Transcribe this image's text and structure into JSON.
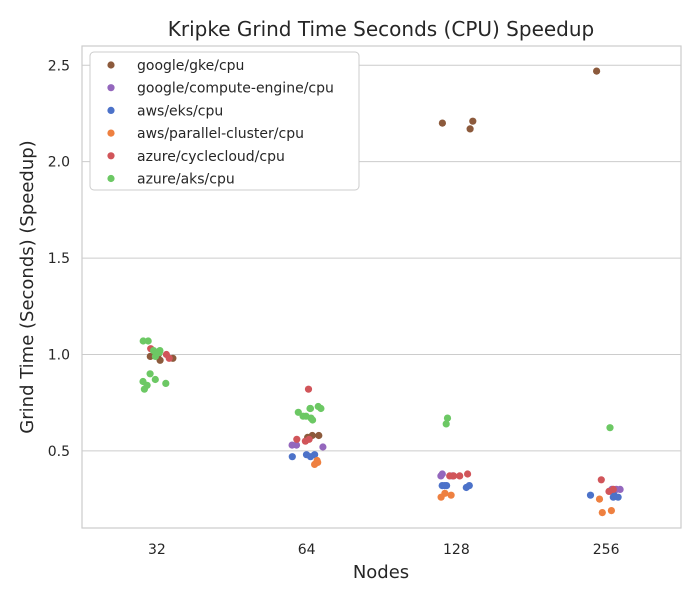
{
  "chart_data": {
    "type": "scatter",
    "title": "Kripke Grind Time Seconds (CPU) Speedup",
    "xlabel": "Nodes",
    "ylabel": "Grind Time (Seconds) (Speedup)",
    "categories": [
      "32",
      "64",
      "128",
      "256"
    ],
    "yticks": [
      "0.5",
      "1.0",
      "1.5",
      "2.0",
      "2.5"
    ],
    "ylim": [
      0.1,
      2.6
    ],
    "grid": true,
    "legend_position": "top-left",
    "series": [
      {
        "name": "google/gke/cpu",
        "color": "#8c5a3c",
        "points": [
          {
            "x": "32",
            "y": 0.97
          },
          {
            "x": "32",
            "y": 0.99
          },
          {
            "x": "32",
            "y": 1.0
          },
          {
            "x": "32",
            "y": 0.98
          },
          {
            "x": "64",
            "y": 0.58
          },
          {
            "x": "64",
            "y": 0.57
          },
          {
            "x": "64",
            "y": 0.58
          },
          {
            "x": "128",
            "y": 2.17
          },
          {
            "x": "128",
            "y": 2.2
          },
          {
            "x": "128",
            "y": 2.21
          },
          {
            "x": "256",
            "y": 2.47
          }
        ]
      },
      {
        "name": "google/compute-engine/cpu",
        "color": "#9467bd",
        "points": [
          {
            "x": "64",
            "y": 0.53
          },
          {
            "x": "64",
            "y": 0.52
          },
          {
            "x": "64",
            "y": 0.53
          },
          {
            "x": "128",
            "y": 0.37
          },
          {
            "x": "128",
            "y": 0.37
          },
          {
            "x": "128",
            "y": 0.38
          },
          {
            "x": "256",
            "y": 0.3
          },
          {
            "x": "256",
            "y": 0.3
          },
          {
            "x": "256",
            "y": 0.3
          }
        ]
      },
      {
        "name": "aws/eks/cpu",
        "color": "#4c72c9",
        "points": [
          {
            "x": "64",
            "y": 0.48
          },
          {
            "x": "64",
            "y": 0.47
          },
          {
            "x": "64",
            "y": 0.47
          },
          {
            "x": "64",
            "y": 0.48
          },
          {
            "x": "128",
            "y": 0.32
          },
          {
            "x": "128",
            "y": 0.32
          },
          {
            "x": "128",
            "y": 0.32
          },
          {
            "x": "128",
            "y": 0.31
          },
          {
            "x": "128",
            "y": 0.32
          },
          {
            "x": "256",
            "y": 0.27
          },
          {
            "x": "256",
            "y": 0.26
          },
          {
            "x": "256",
            "y": 0.27
          },
          {
            "x": "256",
            "y": 0.26
          }
        ]
      },
      {
        "name": "aws/parallel-cluster/cpu",
        "color": "#ee8040",
        "points": [
          {
            "x": "64",
            "y": 0.45
          },
          {
            "x": "64",
            "y": 0.44
          },
          {
            "x": "64",
            "y": 0.43
          },
          {
            "x": "128",
            "y": 0.26
          },
          {
            "x": "128",
            "y": 0.27
          },
          {
            "x": "128",
            "y": 0.28
          },
          {
            "x": "256",
            "y": 0.19
          },
          {
            "x": "256",
            "y": 0.18
          },
          {
            "x": "256",
            "y": 0.25
          }
        ]
      },
      {
        "name": "azure/cyclecloud/cpu",
        "color": "#d1555a",
        "points": [
          {
            "x": "32",
            "y": 1.0
          },
          {
            "x": "32",
            "y": 1.03
          },
          {
            "x": "32",
            "y": 0.98
          },
          {
            "x": "64",
            "y": 0.82
          },
          {
            "x": "64",
            "y": 0.56
          },
          {
            "x": "64",
            "y": 0.55
          },
          {
            "x": "64",
            "y": 0.56
          },
          {
            "x": "128",
            "y": 0.37
          },
          {
            "x": "128",
            "y": 0.37
          },
          {
            "x": "128",
            "y": 0.38
          },
          {
            "x": "128",
            "y": 0.37
          },
          {
            "x": "256",
            "y": 0.35
          },
          {
            "x": "256",
            "y": 0.3
          },
          {
            "x": "256",
            "y": 0.29
          }
        ]
      },
      {
        "name": "azure/aks/cpu",
        "color": "#6cc864",
        "points": [
          {
            "x": "32",
            "y": 1.02
          },
          {
            "x": "32",
            "y": 1.01
          },
          {
            "x": "32",
            "y": 1.07
          },
          {
            "x": "32",
            "y": 1.07
          },
          {
            "x": "32",
            "y": 1.02
          },
          {
            "x": "32",
            "y": 1.01
          },
          {
            "x": "32",
            "y": 0.99
          },
          {
            "x": "32",
            "y": 0.9
          },
          {
            "x": "32",
            "y": 0.87
          },
          {
            "x": "32",
            "y": 0.86
          },
          {
            "x": "32",
            "y": 0.85
          },
          {
            "x": "32",
            "y": 0.84
          },
          {
            "x": "32",
            "y": 0.82
          },
          {
            "x": "64",
            "y": 0.73
          },
          {
            "x": "64",
            "y": 0.72
          },
          {
            "x": "64",
            "y": 0.72
          },
          {
            "x": "64",
            "y": 0.72
          },
          {
            "x": "64",
            "y": 0.7
          },
          {
            "x": "64",
            "y": 0.68
          },
          {
            "x": "64",
            "y": 0.68
          },
          {
            "x": "64",
            "y": 0.67
          },
          {
            "x": "64",
            "y": 0.66
          },
          {
            "x": "128",
            "y": 0.67
          },
          {
            "x": "128",
            "y": 0.64
          },
          {
            "x": "256",
            "y": 0.62
          }
        ]
      }
    ]
  }
}
